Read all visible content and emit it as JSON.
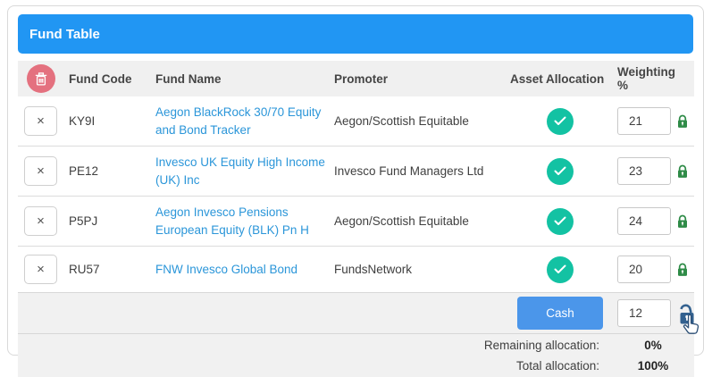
{
  "panel": {
    "title": "Fund Table"
  },
  "table": {
    "columns": {
      "code": "Fund Code",
      "name": "Fund Name",
      "promoter": "Promoter",
      "asset": "Asset Allocation",
      "weighting": "Weighting %"
    },
    "remove_button_label": "×",
    "rows": [
      {
        "code": "KY9I",
        "name": "Aegon BlackRock 30/70 Equity and Bond Tracker",
        "promoter": "Aegon/Scottish Equitable",
        "asset_allocated": true,
        "weighting": "21",
        "locked": true
      },
      {
        "code": "PE12",
        "name": "Invesco UK Equity High Income (UK) Inc",
        "promoter": "Invesco Fund Managers Ltd",
        "asset_allocated": true,
        "weighting": "23",
        "locked": true
      },
      {
        "code": "P5PJ",
        "name": "Aegon Invesco Pensions European Equity (BLK) Pn H",
        "promoter": "Aegon/Scottish Equitable",
        "asset_allocated": true,
        "weighting": "24",
        "locked": true
      },
      {
        "code": "RU57",
        "name": "FNW Invesco Global Bond",
        "promoter": "FundsNetwork",
        "asset_allocated": true,
        "weighting": "20",
        "locked": true
      }
    ],
    "cash_row": {
      "button_label": "Cash",
      "weighting": "12",
      "locked": false
    }
  },
  "footer": {
    "remaining_label": "Remaining allocation:",
    "remaining_value": "0%",
    "total_label": "Total allocation:",
    "total_value": "100%"
  },
  "icons": {
    "delete_all": "trash-icon",
    "remove_row": "x-icon",
    "allocated": "check-circle-icon",
    "locked": "lock-closed-icon",
    "unlocked": "lock-open-icon",
    "cursor": "hand-pointer-cursor"
  },
  "colors": {
    "header_blue": "#2196f3",
    "cash_button_blue": "#4b96ea",
    "link_blue": "#2b96d9",
    "check_teal": "#13c2a3",
    "lock_green": "#2e8b47",
    "lock_navy": "#33618f",
    "trash_pink": "#e4717f"
  }
}
